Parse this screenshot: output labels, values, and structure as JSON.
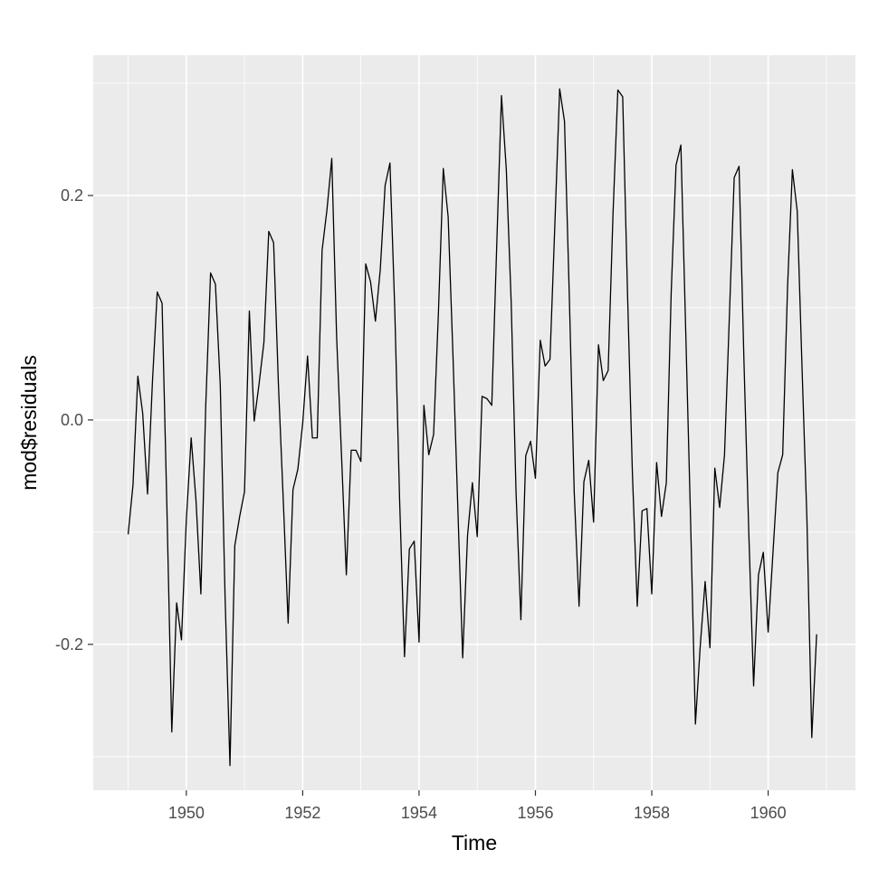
{
  "chart_data": {
    "type": "line",
    "title": "",
    "xlabel": "Time",
    "ylabel": "mod$residuals",
    "xlim": [
      1948.4,
      1961.5
    ],
    "ylim": [
      -0.33,
      0.325
    ],
    "x_ticks": [
      1950,
      1952,
      1954,
      1956,
      1958,
      1960
    ],
    "y_ticks": [
      -0.2,
      0.0,
      0.2
    ],
    "x_tick_labels": [
      "1950",
      "1952",
      "1954",
      "1956",
      "1958",
      "1960"
    ],
    "y_tick_labels": [
      "-0.2",
      "0.0",
      "0.2"
    ],
    "grid": true,
    "colors": {
      "panel": "#ebebeb",
      "grid": "#ffffff",
      "line": "#000000"
    },
    "series": [
      {
        "x_start": 1949.0,
        "x_step": 0.08333333,
        "values": [
          -0.102,
          -0.058,
          0.039,
          0.006,
          -0.066,
          0.033,
          0.114,
          0.104,
          -0.079,
          -0.278,
          -0.163,
          -0.196,
          -0.089,
          -0.016,
          -0.072,
          -0.155,
          0.012,
          0.131,
          0.121,
          0.031,
          -0.159,
          -0.308,
          -0.112,
          -0.086,
          -0.064,
          0.097,
          -0.001,
          0.032,
          0.069,
          0.168,
          0.158,
          0.031,
          -0.072,
          -0.181,
          -0.062,
          -0.044,
          -0.003,
          0.057,
          -0.016,
          -0.016,
          0.151,
          0.187,
          0.233,
          0.074,
          -0.031,
          -0.138,
          -0.027,
          -0.027,
          -0.037,
          0.139,
          0.123,
          0.088,
          0.134,
          0.209,
          0.229,
          0.097,
          -0.073,
          -0.211,
          -0.115,
          -0.108,
          -0.198,
          0.013,
          -0.031,
          -0.013,
          0.096,
          0.224,
          0.181,
          0.057,
          -0.079,
          -0.212,
          -0.103,
          -0.056,
          -0.104,
          0.021,
          0.019,
          0.013,
          0.153,
          0.289,
          0.223,
          0.105,
          -0.064,
          -0.178,
          -0.032,
          -0.019,
          -0.052,
          0.071,
          0.048,
          0.054,
          0.173,
          0.295,
          0.266,
          0.109,
          -0.064,
          -0.166,
          -0.055,
          -0.036,
          -0.091,
          0.067,
          0.035,
          0.044,
          0.183,
          0.294,
          0.288,
          0.112,
          -0.047,
          -0.166,
          -0.081,
          -0.079,
          -0.155,
          -0.038,
          -0.086,
          -0.056,
          0.113,
          0.227,
          0.245,
          0.079,
          -0.089,
          -0.271,
          -0.201,
          -0.144,
          -0.203,
          -0.043,
          -0.078,
          -0.031,
          0.092,
          0.216,
          0.226,
          0.054,
          -0.099,
          -0.237,
          -0.138,
          -0.118,
          -0.189,
          -0.118,
          -0.047,
          -0.031,
          0.118,
          0.223,
          0.186,
          0.045,
          -0.089,
          -0.283,
          -0.191
        ]
      }
    ]
  }
}
